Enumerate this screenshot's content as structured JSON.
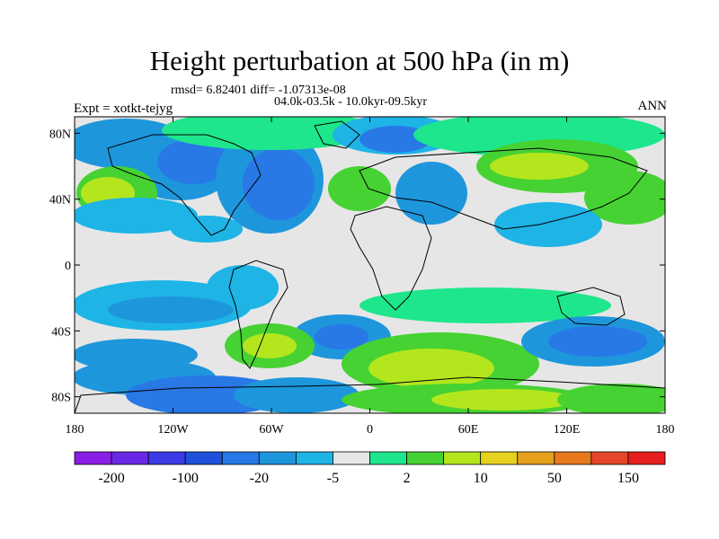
{
  "title": "Height perturbation at 500 hPa (in m)",
  "stats_text": "rmsd= 6.82401 diff= -1.07313e-08",
  "period_text": "04.0k-03.5k - 10.0kyr-09.5kyr",
  "experiment_text": "Expt = xotkt-tejyg",
  "season_text": "ANN",
  "map": {
    "lat_labels": [
      "80N",
      "40N",
      "0",
      "40S",
      "80S"
    ],
    "lat_values": [
      80,
      40,
      0,
      -40,
      -80
    ],
    "lon_labels": [
      "180",
      "120W",
      "60W",
      "0",
      "60E",
      "120E",
      "180"
    ],
    "lon_values": [
      -180,
      -120,
      -60,
      0,
      60,
      120,
      180
    ]
  },
  "colorbar": {
    "colors": [
      "#8a1ee6",
      "#6a28e6",
      "#3c3ce6",
      "#1e50dc",
      "#2878e6",
      "#1e96dc",
      "#1eb4e6",
      "#e6e6e6",
      "#1ee68c",
      "#46d232",
      "#b4e61e",
      "#e6d21e",
      "#e6a01e",
      "#e6781e",
      "#e64628",
      "#e61e1e"
    ],
    "labels": [
      "-200",
      "-100",
      "-20",
      "-5",
      "2",
      "10",
      "50",
      "150"
    ],
    "label_after_box": [
      1,
      3,
      5,
      7,
      9,
      11,
      13,
      15
    ]
  }
}
